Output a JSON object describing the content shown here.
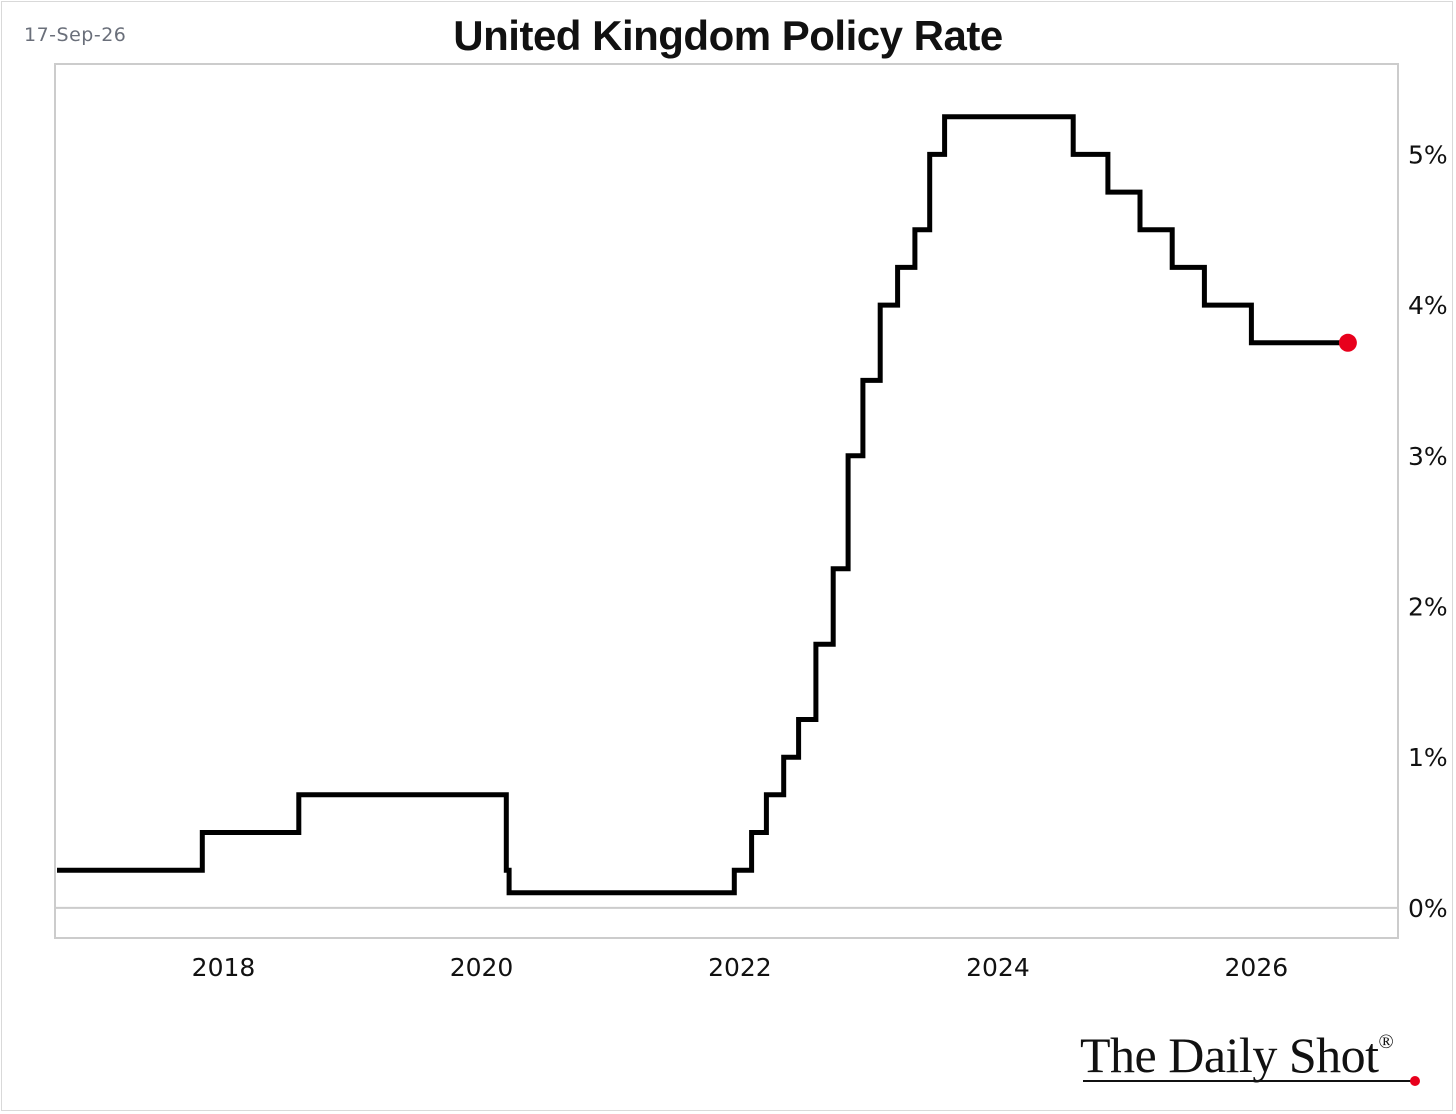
{
  "header": {
    "date": "17-Sep-26",
    "title": "United Kingdom Policy Rate"
  },
  "brand": {
    "logo_text": "The Daily Shot",
    "registered_mark": "®"
  },
  "colors": {
    "line": "#000000",
    "endpoint": "#e8001c",
    "axis": "#cccccc"
  },
  "chart_data": {
    "type": "line",
    "step": true,
    "title": "United Kingdom Policy Rate",
    "xlabel": "",
    "ylabel": "",
    "x_axis": {
      "type": "date",
      "range": [
        "2016-09-17",
        "2026-12-31"
      ],
      "ticks": [
        "2018",
        "2020",
        "2022",
        "2024",
        "2026"
      ]
    },
    "y_axis": {
      "range": [
        -0.2,
        5.6
      ],
      "position": "right",
      "ticks": [
        "0%",
        "1%",
        "2%",
        "3%",
        "4%",
        "5%"
      ],
      "tick_values": [
        0,
        1,
        2,
        3,
        4,
        5
      ]
    },
    "grid": false,
    "legend": "none",
    "series": [
      {
        "x": [
          "2016-09-17",
          "2017-11-02",
          "2018-08-02",
          "2020-03-11",
          "2020-03-19",
          "2021-12-16",
          "2022-02-03",
          "2022-03-17",
          "2022-05-05",
          "2022-06-16",
          "2022-08-04",
          "2022-09-22",
          "2022-11-03",
          "2022-12-15",
          "2023-02-02",
          "2023-03-23",
          "2023-05-11",
          "2023-06-22",
          "2023-08-03",
          "2024-08-01",
          "2024-11-07",
          "2025-02-06",
          "2025-05-08",
          "2025-08-07",
          "2025-12-18",
          "2026-09-17"
        ],
        "y": [
          0.25,
          0.5,
          0.75,
          0.25,
          0.1,
          0.25,
          0.5,
          0.75,
          1.0,
          1.25,
          1.75,
          2.25,
          3.0,
          3.5,
          4.0,
          4.25,
          4.5,
          5.0,
          5.25,
          5.0,
          4.75,
          4.5,
          4.25,
          4.0,
          3.75,
          3.75
        ]
      }
    ],
    "endpoint_marker": {
      "x": "2026-09-17",
      "y": 3.75
    }
  }
}
